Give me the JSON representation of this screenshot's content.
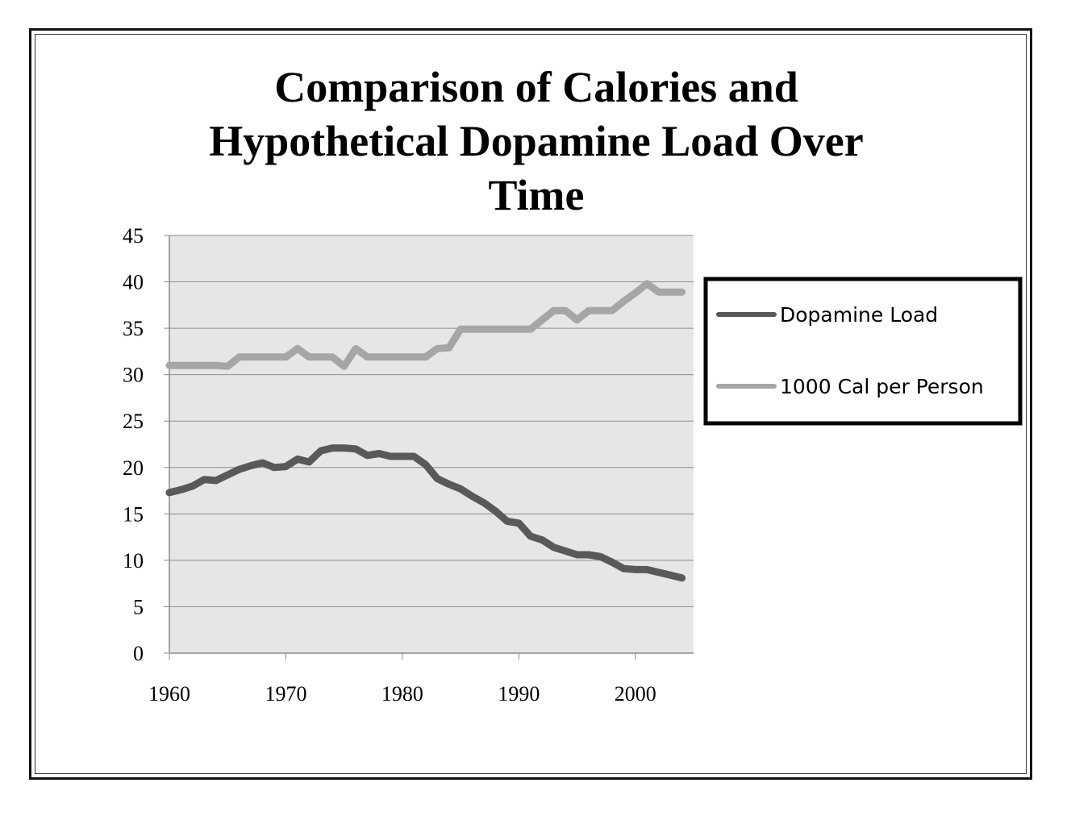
{
  "chart_data": {
    "type": "line",
    "title_lines": [
      "Comparison of Calories and",
      "Hypothetical Dopamine Load Over",
      "Time"
    ],
    "xlabel": "",
    "ylabel": "",
    "xlim": [
      1960,
      2005
    ],
    "ylim": [
      0,
      45
    ],
    "x_ticks": [
      1960,
      1970,
      1980,
      1990,
      2000
    ],
    "y_ticks": [
      0,
      5,
      10,
      15,
      20,
      25,
      30,
      35,
      40,
      45
    ],
    "grid": true,
    "legend_position": "right",
    "plot_background": "#e6e6e6",
    "series": [
      {
        "name": "Dopamine Load",
        "color": "#595959",
        "x": [
          1960,
          1961,
          1962,
          1963,
          1964,
          1965,
          1966,
          1967,
          1968,
          1969,
          1970,
          1971,
          1972,
          1973,
          1974,
          1975,
          1976,
          1977,
          1978,
          1979,
          1980,
          1981,
          1982,
          1983,
          1984,
          1985,
          1986,
          1987,
          1988,
          1989,
          1990,
          1991,
          1992,
          1993,
          1994,
          1995,
          1996,
          1997,
          1998,
          1999,
          2000,
          2001,
          2002,
          2003,
          2004
        ],
        "values": [
          17.3,
          17.6,
          18.0,
          18.7,
          18.6,
          19.2,
          19.8,
          20.2,
          20.5,
          20.0,
          20.1,
          20.9,
          20.6,
          21.8,
          22.1,
          22.1,
          22.0,
          21.3,
          21.5,
          21.2,
          21.2,
          21.2,
          20.3,
          18.8,
          18.2,
          17.7,
          16.9,
          16.2,
          15.3,
          14.2,
          14.0,
          12.6,
          12.2,
          11.4,
          11.0,
          10.6,
          10.6,
          10.4,
          9.8,
          9.1,
          9.0,
          9.0,
          8.7,
          8.4,
          8.1
        ]
      },
      {
        "name": "1000 Cal per Person",
        "color": "#a6a6a6",
        "x": [
          1960,
          1961,
          1962,
          1963,
          1964,
          1965,
          1966,
          1967,
          1968,
          1969,
          1970,
          1971,
          1972,
          1973,
          1974,
          1975,
          1976,
          1977,
          1978,
          1979,
          1980,
          1981,
          1982,
          1983,
          1984,
          1985,
          1986,
          1987,
          1988,
          1989,
          1990,
          1991,
          1992,
          1993,
          1994,
          1995,
          1996,
          1997,
          1998,
          1999,
          2000,
          2001,
          2002,
          2003,
          2004
        ],
        "values": [
          31.0,
          31.0,
          31.0,
          31.0,
          31.0,
          30.9,
          31.9,
          31.9,
          31.9,
          31.9,
          31.9,
          32.8,
          31.9,
          31.9,
          31.9,
          30.9,
          32.8,
          31.9,
          31.9,
          31.9,
          31.9,
          31.9,
          31.9,
          32.8,
          32.9,
          34.9,
          34.9,
          34.9,
          34.9,
          34.9,
          34.9,
          34.9,
          35.9,
          36.9,
          36.9,
          35.9,
          36.9,
          36.9,
          36.9,
          37.9,
          38.8,
          39.8,
          38.9,
          38.9,
          38.9
        ]
      }
    ]
  }
}
